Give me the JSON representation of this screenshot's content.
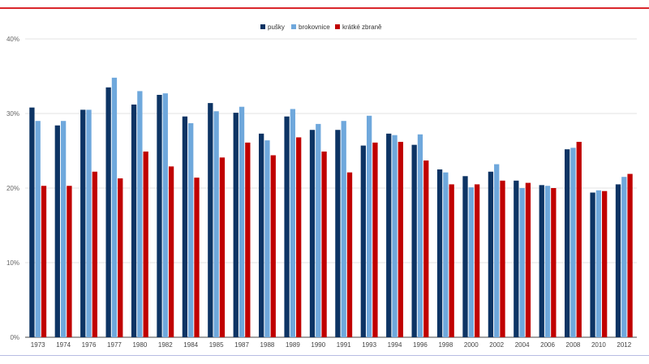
{
  "chart_data": {
    "type": "bar",
    "title": "",
    "xlabel": "",
    "ylabel": "",
    "ylim": [
      0,
      40
    ],
    "yticks": [
      0,
      10,
      20,
      30,
      40
    ],
    "ytick_labels": [
      "0%",
      "10%",
      "20%",
      "30%",
      "40%"
    ],
    "grid": true,
    "legend_position": "top-center",
    "categories": [
      "1973",
      "1974",
      "1976",
      "1977",
      "1980",
      "1982",
      "1984",
      "1985",
      "1987",
      "1988",
      "1989",
      "1990",
      "1991",
      "1993",
      "1994",
      "1996",
      "1998",
      "2000",
      "2002",
      "2004",
      "2006",
      "2008",
      "2010",
      "2012"
    ],
    "series": [
      {
        "name": "pušky",
        "color": "#0d3464",
        "values": [
          30.8,
          28.4,
          30.5,
          33.5,
          31.2,
          32.5,
          29.6,
          31.4,
          30.1,
          27.3,
          29.6,
          27.8,
          27.8,
          25.7,
          27.3,
          25.8,
          22.5,
          21.6,
          22.2,
          21.0,
          20.4,
          25.2,
          19.4,
          20.5
        ]
      },
      {
        "name": "brokovnice",
        "color": "#6fa8dc",
        "values": [
          29.0,
          29.0,
          30.5,
          34.8,
          33.0,
          32.7,
          28.7,
          30.3,
          30.9,
          26.4,
          30.6,
          28.6,
          29.0,
          29.7,
          27.1,
          27.2,
          22.1,
          20.1,
          23.2,
          20.0,
          20.3,
          25.4,
          19.7,
          21.5
        ]
      },
      {
        "name": "krátké zbraně",
        "color": "#c00000",
        "values": [
          20.3,
          20.3,
          22.2,
          21.3,
          24.9,
          22.9,
          21.4,
          24.1,
          26.1,
          24.4,
          26.8,
          24.9,
          22.1,
          26.1,
          26.2,
          23.7,
          20.5,
          20.5,
          21.0,
          20.7,
          20.0,
          26.2,
          19.6,
          21.9
        ]
      }
    ]
  }
}
